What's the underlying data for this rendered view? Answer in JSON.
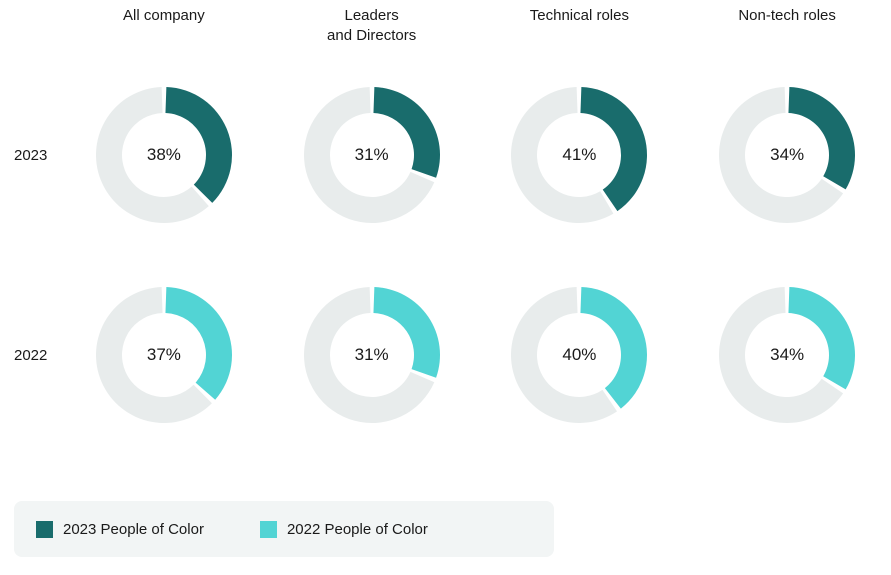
{
  "chart": {
    "type": "donut-grid",
    "background_color": "#ffffff",
    "text_color": "#1a1a1a",
    "title_fontsize": 15,
    "value_fontsize": 17,
    "donut": {
      "outer_radius": 68,
      "thickness": 26,
      "track_color": "#e8ecec",
      "gap_deg": 4,
      "start_angle_deg": -90
    },
    "columns": [
      {
        "key": "all_company",
        "label": "All company"
      },
      {
        "key": "leaders_directors",
        "label": "Leaders\nand Directors"
      },
      {
        "key": "technical",
        "label": "Technical roles"
      },
      {
        "key": "nontech",
        "label": "Non-tech roles"
      }
    ],
    "rows": [
      {
        "key": "y2023",
        "label": "2023",
        "value_color": "#196c6c",
        "cells": [
          {
            "value": 38,
            "display": "38%"
          },
          {
            "value": 31,
            "display": "31%"
          },
          {
            "value": 41,
            "display": "41%"
          },
          {
            "value": 34,
            "display": "34%"
          }
        ]
      },
      {
        "key": "y2022",
        "label": "2022",
        "value_color": "#52d4d4",
        "cells": [
          {
            "value": 37,
            "display": "37%"
          },
          {
            "value": 31,
            "display": "31%"
          },
          {
            "value": 40,
            "display": "40%"
          },
          {
            "value": 34,
            "display": "34%"
          }
        ]
      }
    ],
    "legend": {
      "background_color": "#f2f5f5",
      "swatch_size": 17,
      "fontsize": 15,
      "items": [
        {
          "label": "2023 People of Color",
          "color": "#196c6c"
        },
        {
          "label": "2022 People of Color",
          "color": "#52d4d4"
        }
      ]
    }
  }
}
